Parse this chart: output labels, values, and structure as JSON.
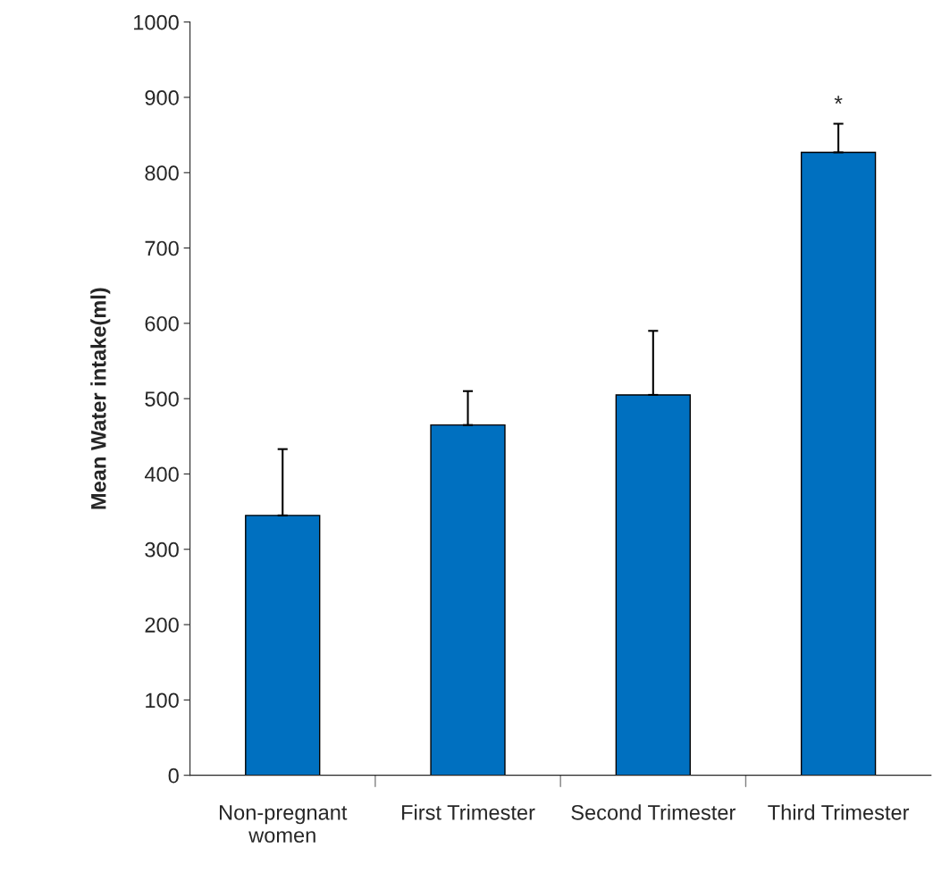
{
  "chart_data": {
    "type": "bar",
    "ylabel": "Mean Water intake(ml)",
    "categories": [
      "Non-pregnant\nwomen",
      "First Trimester",
      "Second Trimester",
      "Third Trimester"
    ],
    "values": [
      345,
      465,
      505,
      827
    ],
    "errors": [
      [
        345,
        433
      ],
      [
        465,
        510
      ],
      [
        505,
        590
      ],
      [
        827,
        865
      ]
    ],
    "color": "#0070c0",
    "ylim": [
      0,
      1000
    ],
    "yticks": [
      0,
      100,
      200,
      300,
      400,
      500,
      600,
      700,
      800,
      900,
      1000
    ],
    "grid": false,
    "legend": false,
    "annotations": [
      {
        "text": "*",
        "x": "Third Trimester",
        "y": 865
      }
    ]
  }
}
